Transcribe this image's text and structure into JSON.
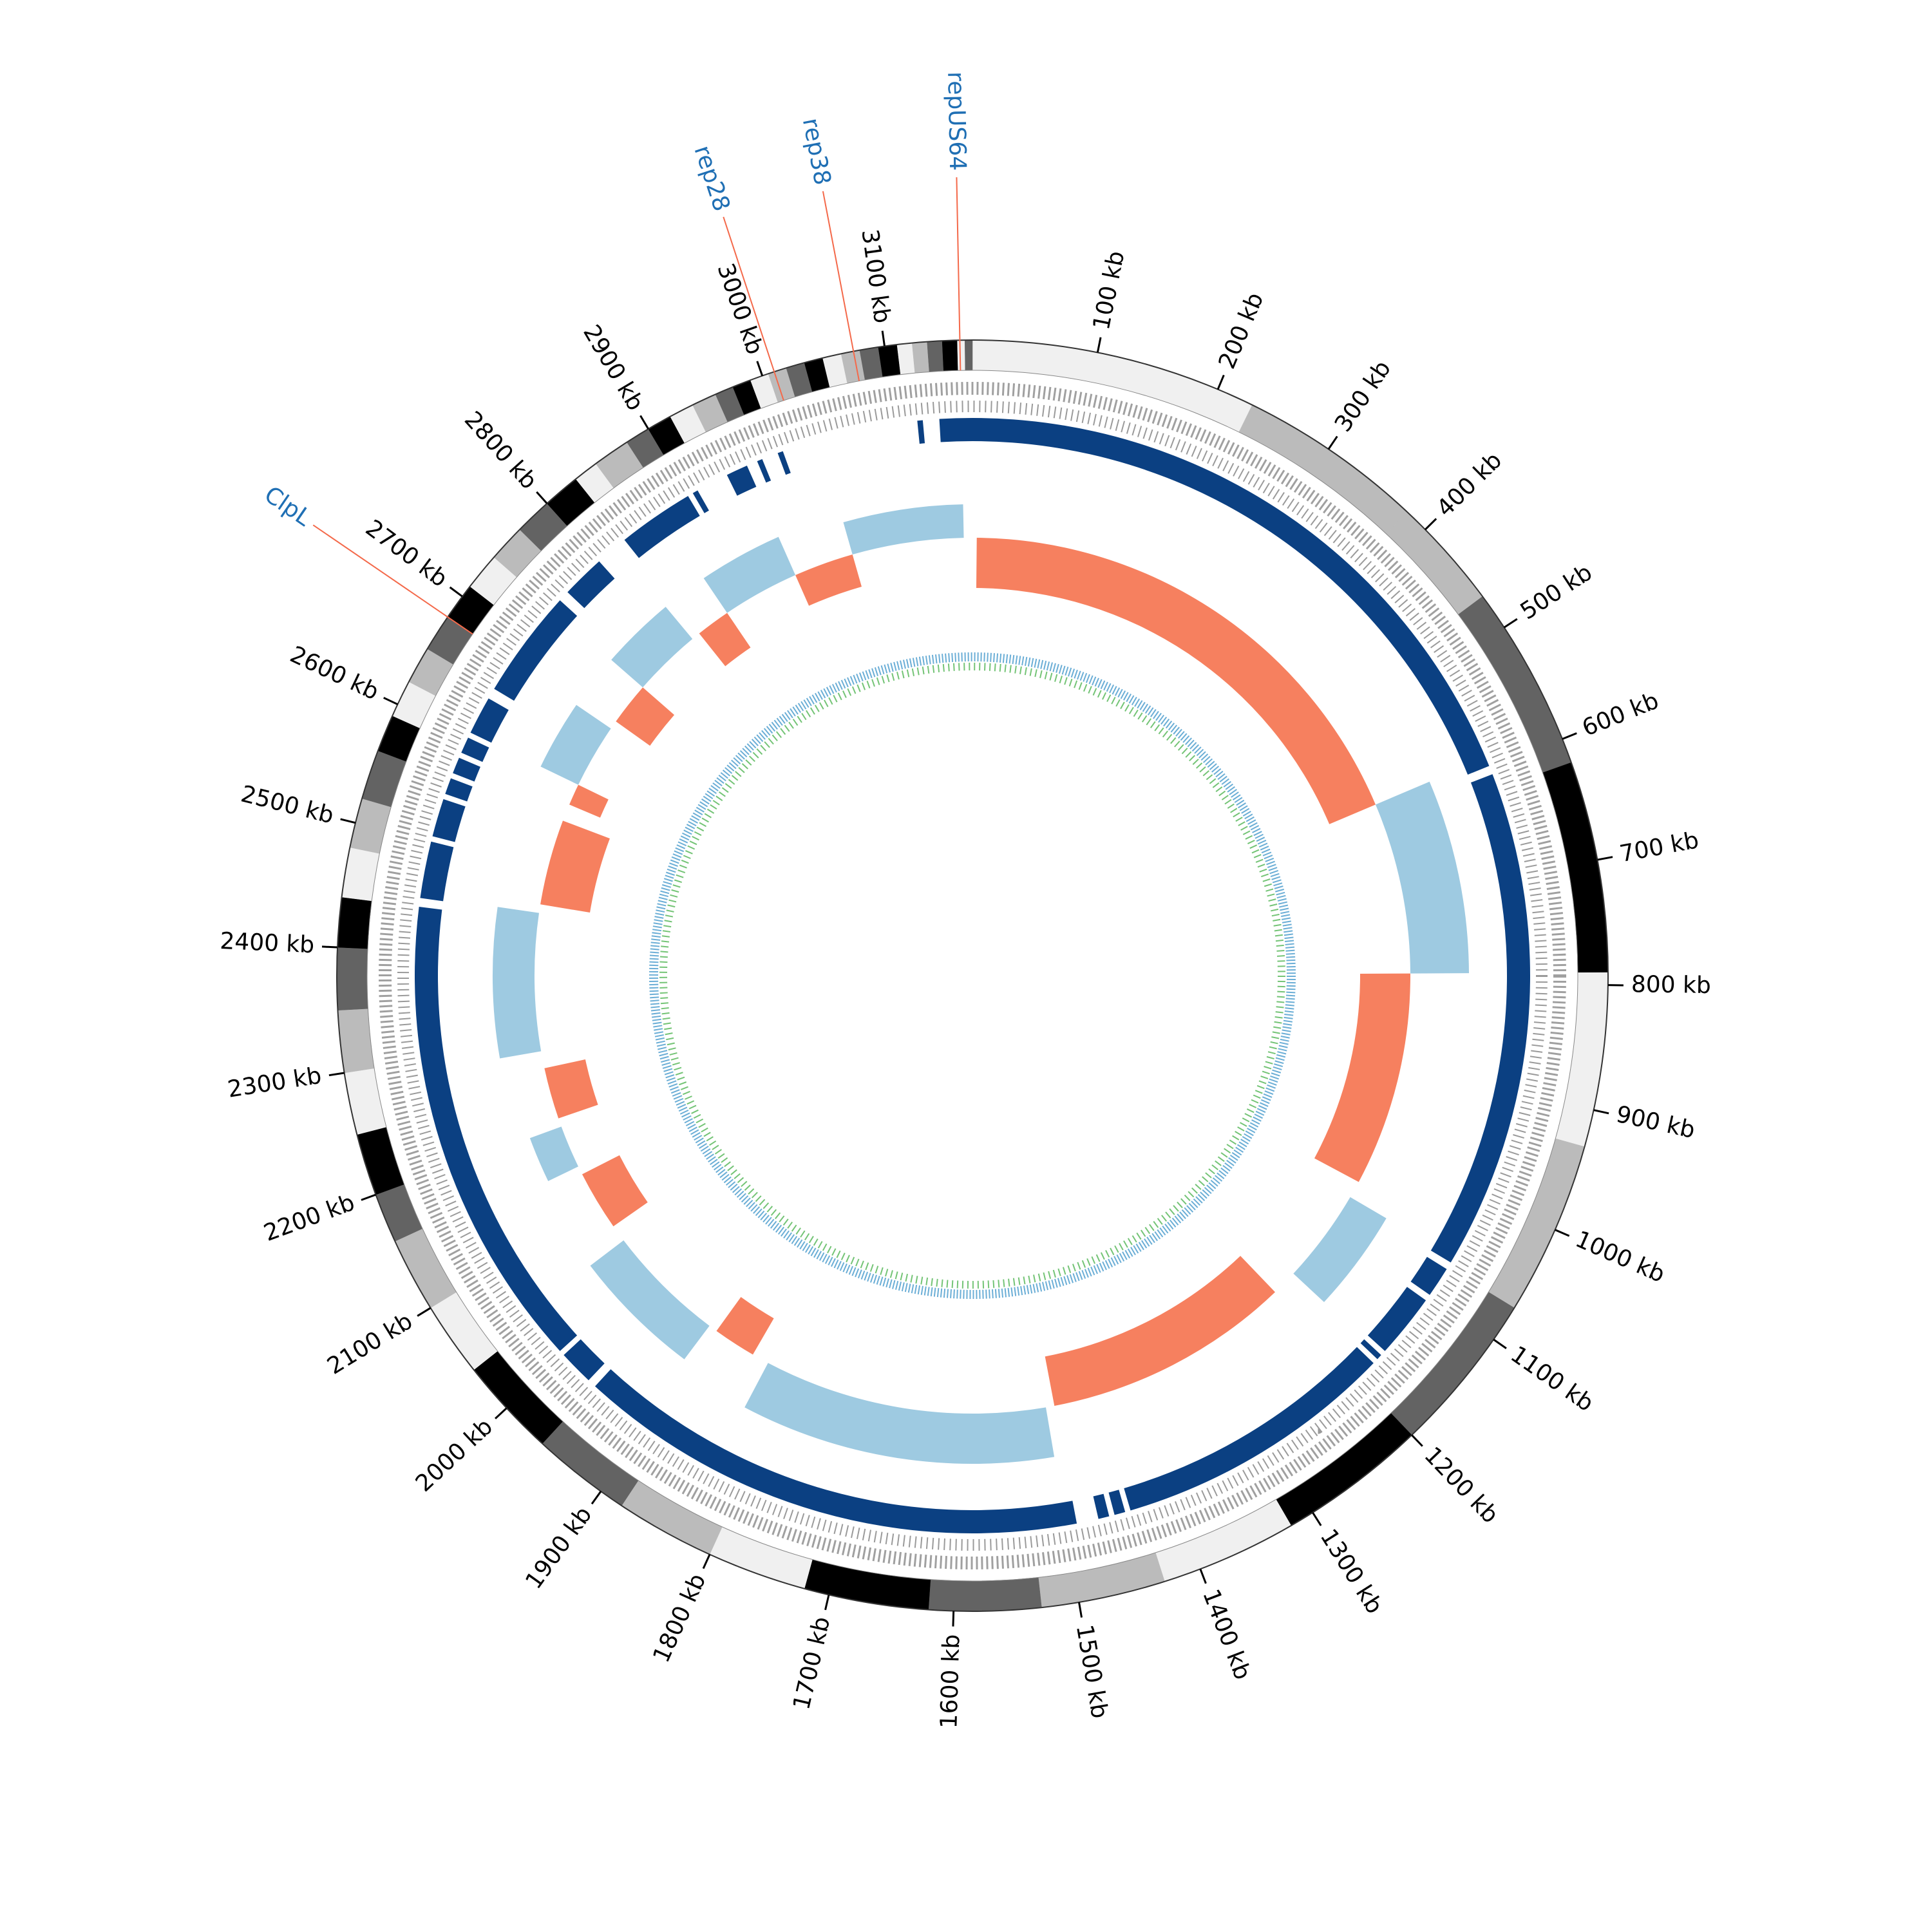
{
  "chart_data": {
    "type": "circular_genome",
    "genome_length": 3170,
    "ticks": [
      {
        "value": 100,
        "label": "100 kb"
      },
      {
        "value": 200,
        "label": "200 kb"
      },
      {
        "value": 300,
        "label": "300 kb"
      },
      {
        "value": 400,
        "label": "400 kb"
      },
      {
        "value": 500,
        "label": "500 kb"
      },
      {
        "value": 600,
        "label": "600 kb"
      },
      {
        "value": 700,
        "label": "700 kb"
      },
      {
        "value": 800,
        "label": "800 kb"
      },
      {
        "value": 900,
        "label": "900 kb"
      },
      {
        "value": 1000,
        "label": "1000 kb"
      },
      {
        "value": 1100,
        "label": "1100 kb"
      },
      {
        "value": 1200,
        "label": "1200 kb"
      },
      {
        "value": 1300,
        "label": "1300 kb"
      },
      {
        "value": 1400,
        "label": "1400 kb"
      },
      {
        "value": 1500,
        "label": "1500 kb"
      },
      {
        "value": 1600,
        "label": "1600 kb"
      },
      {
        "value": 1700,
        "label": "1700 kb"
      },
      {
        "value": 1800,
        "label": "1800 kb"
      },
      {
        "value": 1900,
        "label": "1900 kb"
      },
      {
        "value": 2000,
        "label": "2000 kb"
      },
      {
        "value": 2100,
        "label": "2100 kb"
      },
      {
        "value": 2200,
        "label": "2200 kb"
      },
      {
        "value": 2300,
        "label": "2300 kb"
      },
      {
        "value": 2400,
        "label": "2400 kb"
      },
      {
        "value": 2500,
        "label": "2500 kb"
      },
      {
        "value": 2600,
        "label": "2600 kb"
      },
      {
        "value": 2700,
        "label": "2700 kb"
      },
      {
        "value": 2800,
        "label": "2800 kb"
      },
      {
        "value": 2900,
        "label": "2900 kb"
      },
      {
        "value": 3000,
        "label": "3000 kb"
      },
      {
        "value": 3100,
        "label": "3100 kb"
      }
    ],
    "bands": [
      {
        "start": 0,
        "end": 230,
        "color": "#f0f0f0"
      },
      {
        "start": 230,
        "end": 380,
        "color": "#bbbbbb"
      },
      {
        "start": 380,
        "end": 470,
        "color": "#bbbbbb"
      },
      {
        "start": 470,
        "end": 620,
        "color": "#636363"
      },
      {
        "start": 620,
        "end": 790,
        "color": "#000000"
      },
      {
        "start": 790,
        "end": 930,
        "color": "#f0f0f0"
      },
      {
        "start": 930,
        "end": 1070,
        "color": "#bbbbbb"
      },
      {
        "start": 1070,
        "end": 1200,
        "color": "#636363"
      },
      {
        "start": 1200,
        "end": 1320,
        "color": "#000000"
      },
      {
        "start": 1320,
        "end": 1430,
        "color": "#f0f0f0"
      },
      {
        "start": 1430,
        "end": 1530,
        "color": "#bbbbbb"
      },
      {
        "start": 1530,
        "end": 1620,
        "color": "#636363"
      },
      {
        "start": 1620,
        "end": 1720,
        "color": "#000000"
      },
      {
        "start": 1720,
        "end": 1800,
        "color": "#f0f0f0"
      },
      {
        "start": 1800,
        "end": 1880,
        "color": "#bbbbbb"
      },
      {
        "start": 1880,
        "end": 1960,
        "color": "#636363"
      },
      {
        "start": 1960,
        "end": 2040,
        "color": "#000000"
      },
      {
        "start": 2040,
        "end": 2100,
        "color": "#f0f0f0"
      },
      {
        "start": 2100,
        "end": 2160,
        "color": "#bbbbbb"
      },
      {
        "start": 2160,
        "end": 2200,
        "color": "#636363"
      },
      {
        "start": 2200,
        "end": 2250,
        "color": "#000000"
      },
      {
        "start": 2250,
        "end": 2300,
        "color": "#f0f0f0"
      },
      {
        "start": 2300,
        "end": 2350,
        "color": "#bbbbbb"
      },
      {
        "start": 2350,
        "end": 2400,
        "color": "#636363"
      },
      {
        "start": 2400,
        "end": 2440,
        "color": "#000000"
      },
      {
        "start": 2440,
        "end": 2480,
        "color": "#f0f0f0"
      },
      {
        "start": 2480,
        "end": 2520,
        "color": "#bbbbbb"
      },
      {
        "start": 2520,
        "end": 2560,
        "color": "#636363"
      },
      {
        "start": 2560,
        "end": 2590,
        "color": "#000000"
      },
      {
        "start": 2590,
        "end": 2620,
        "color": "#f0f0f0"
      },
      {
        "start": 2620,
        "end": 2650,
        "color": "#bbbbbb"
      },
      {
        "start": 2650,
        "end": 2680,
        "color": "#636363"
      },
      {
        "start": 2680,
        "end": 2710,
        "color": "#000000"
      },
      {
        "start": 2710,
        "end": 2740,
        "color": "#f0f0f0"
      },
      {
        "start": 2740,
        "end": 2770,
        "color": "#bbbbbb"
      },
      {
        "start": 2770,
        "end": 2800,
        "color": "#636363"
      },
      {
        "start": 2800,
        "end": 2830,
        "color": "#000000"
      },
      {
        "start": 2830,
        "end": 2850,
        "color": "#f0f0f0"
      },
      {
        "start": 2850,
        "end": 2880,
        "color": "#bbbbbb"
      },
      {
        "start": 2880,
        "end": 2900,
        "color": "#636363"
      },
      {
        "start": 2900,
        "end": 2920,
        "color": "#000000"
      },
      {
        "start": 2920,
        "end": 2940,
        "color": "#f0f0f0"
      },
      {
        "start": 2940,
        "end": 2960,
        "color": "#bbbbbb"
      },
      {
        "start": 2960,
        "end": 2975,
        "color": "#636363"
      },
      {
        "start": 2975,
        "end": 2990,
        "color": "#000000"
      },
      {
        "start": 2990,
        "end": 3005,
        "color": "#f0f0f0"
      },
      {
        "start": 3005,
        "end": 3020,
        "color": "#bbbbbb"
      },
      {
        "start": 3020,
        "end": 3035,
        "color": "#636363"
      },
      {
        "start": 3035,
        "end": 3050,
        "color": "#000000"
      },
      {
        "start": 3050,
        "end": 3065,
        "color": "#f0f0f0"
      },
      {
        "start": 3065,
        "end": 3080,
        "color": "#bbbbbb"
      },
      {
        "start": 3080,
        "end": 3095,
        "color": "#636363"
      },
      {
        "start": 3095,
        "end": 3110,
        "color": "#000000"
      },
      {
        "start": 3110,
        "end": 3122,
        "color": "#f0f0f0"
      },
      {
        "start": 3122,
        "end": 3134,
        "color": "#bbbbbb"
      },
      {
        "start": 3134,
        "end": 3146,
        "color": "#636363"
      },
      {
        "start": 3146,
        "end": 3158,
        "color": "#000000"
      },
      {
        "start": 3158,
        "end": 3164,
        "color": "#f0f0f0"
      },
      {
        "start": 3164,
        "end": 3170,
        "color": "#636363"
      }
    ],
    "alignment_color": "#0b4082",
    "alignments": [
      {
        "start": 0,
        "end": 598
      },
      {
        "start": 606,
        "end": 1065
      },
      {
        "start": 1072,
        "end": 1100
      },
      {
        "start": 1106,
        "end": 1165
      },
      {
        "start": 1170,
        "end": 1175
      },
      {
        "start": 1180,
        "end": 1440
      },
      {
        "start": 1445,
        "end": 1455
      },
      {
        "start": 1460,
        "end": 1470
      },
      {
        "start": 1490,
        "end": 1960
      },
      {
        "start": 1968,
        "end": 2000
      },
      {
        "start": 2005,
        "end": 2440
      },
      {
        "start": 2448,
        "end": 2500
      },
      {
        "start": 2505,
        "end": 2540
      },
      {
        "start": 2545,
        "end": 2560
      },
      {
        "start": 2565,
        "end": 2580
      },
      {
        "start": 2585,
        "end": 2600
      },
      {
        "start": 2605,
        "end": 2640
      },
      {
        "start": 2650,
        "end": 2750
      },
      {
        "start": 2760,
        "end": 2800
      },
      {
        "start": 2830,
        "end": 2900
      },
      {
        "start": 2905,
        "end": 2910
      },
      {
        "start": 2940,
        "end": 2960
      },
      {
        "start": 2970,
        "end": 2975
      },
      {
        "start": 2990,
        "end": 2995
      },
      {
        "start": 3120,
        "end": 3125
      },
      {
        "start": 3140,
        "end": 3170
      }
    ],
    "skew_colors": {
      "positive": "#f6805f",
      "negative": "#9ecae1"
    },
    "skew_lim": [
      -0.1,
      0.1
    ],
    "skew": [
      {
        "start": 5,
        "end": 590,
        "value": 0.06
      },
      {
        "start": 590,
        "end": 790,
        "value": -0.07
      },
      {
        "start": 790,
        "end": 1040,
        "value": 0.06
      },
      {
        "start": 1060,
        "end": 1170,
        "value": -0.05
      },
      {
        "start": 1200,
        "end": 1490,
        "value": 0.06
      },
      {
        "start": 1500,
        "end": 1830,
        "value": -0.06
      },
      {
        "start": 1850,
        "end": 1900,
        "value": 0.05
      },
      {
        "start": 1910,
        "end": 2050,
        "value": -0.05
      },
      {
        "start": 2070,
        "end": 2140,
        "value": 0.05
      },
      {
        "start": 2150,
        "end": 2200,
        "value": -0.04
      },
      {
        "start": 2210,
        "end": 2270,
        "value": 0.05
      },
      {
        "start": 2290,
        "end": 2450,
        "value": -0.05
      },
      {
        "start": 2460,
        "end": 2560,
        "value": 0.06
      },
      {
        "start": 2580,
        "end": 2605,
        "value": 0.04
      },
      {
        "start": 2605,
        "end": 2680,
        "value": -0.05
      },
      {
        "start": 2690,
        "end": 2740,
        "value": 0.05
      },
      {
        "start": 2740,
        "end": 2820,
        "value": -0.05
      },
      {
        "start": 2830,
        "end": 2870,
        "value": 0.05
      },
      {
        "start": 2870,
        "end": 2960,
        "value": -0.05
      },
      {
        "start": 2960,
        "end": 3030,
        "value": 0.04
      },
      {
        "start": 3030,
        "end": 3160,
        "value": -0.04
      }
    ],
    "annotation_color": "#1f6fb4",
    "annotation_line_color": "#f4694a",
    "annotations": [
      {
        "label": "repUS64",
        "position": 3160
      },
      {
        "label": "rep38",
        "position": 3075
      },
      {
        "label": "rep28",
        "position": 3010
      },
      {
        "label": "ClpL",
        "position": 2680
      }
    ]
  }
}
